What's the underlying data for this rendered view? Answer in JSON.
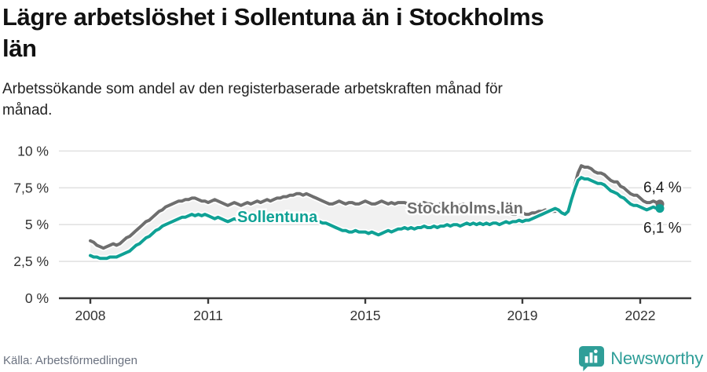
{
  "header": {
    "title": "Lägre arbetslöshet i Sollentuna än i Stockholms län",
    "subtitle": "Arbetssökande som andel av den registerbaserade arbetskraften månad för månad."
  },
  "footer": {
    "source": "Källa: Arbetsförmedlingen",
    "brand": "Newsworthy"
  },
  "colors": {
    "title_text": "#111111",
    "subtitle_text": "#222222",
    "axis_text": "#333333",
    "axis_line": "#3b3b3b",
    "gridline": "#e2e2e2",
    "band_fill": "#f1f1f1",
    "end_label_text": "#1a1a1a",
    "source_text": "#6b7280",
    "brand_teal": "#2f9e98",
    "stockholm_gray": "#6e6e6e",
    "sollentuna_teal": "#0fa195"
  },
  "chart_data": {
    "type": "line",
    "title": "Lägre arbetslöshet i Sollentuna än i Stockholms län",
    "xlabel": "",
    "ylabel": "",
    "frequency": "monthly",
    "x_start": "2008-01",
    "x_end": "2022-07",
    "ylim": [
      0,
      10
    ],
    "grid": "horizontal",
    "legend_position": "inline-labels",
    "x_ticks": [
      2008,
      2011,
      2015,
      2019,
      2022
    ],
    "y_ticks": [
      {
        "v": 0,
        "label": "0 %"
      },
      {
        "v": 2.5,
        "label": "2,5 %"
      },
      {
        "v": 5,
        "label": "5 %"
      },
      {
        "v": 7.5,
        "label": "7,5 %"
      },
      {
        "v": 10,
        "label": "10 %"
      }
    ],
    "series": [
      {
        "name": "Stockholms län",
        "color": "#6e6e6e",
        "end_label": "6,4 %",
        "end_value": 6.4,
        "values": [
          3.9,
          3.8,
          3.6,
          3.5,
          3.4,
          3.5,
          3.6,
          3.7,
          3.6,
          3.7,
          3.9,
          4.1,
          4.2,
          4.4,
          4.6,
          4.8,
          5.0,
          5.2,
          5.3,
          5.5,
          5.7,
          5.9,
          6.0,
          6.2,
          6.3,
          6.4,
          6.5,
          6.6,
          6.6,
          6.7,
          6.7,
          6.8,
          6.8,
          6.7,
          6.6,
          6.6,
          6.5,
          6.6,
          6.7,
          6.6,
          6.5,
          6.4,
          6.3,
          6.4,
          6.5,
          6.4,
          6.3,
          6.4,
          6.5,
          6.4,
          6.5,
          6.6,
          6.5,
          6.6,
          6.7,
          6.6,
          6.7,
          6.8,
          6.8,
          6.9,
          6.9,
          7.0,
          7.0,
          7.1,
          7.1,
          7.0,
          7.1,
          7.0,
          6.9,
          6.8,
          6.7,
          6.6,
          6.5,
          6.4,
          6.4,
          6.5,
          6.6,
          6.5,
          6.4,
          6.5,
          6.5,
          6.4,
          6.4,
          6.5,
          6.6,
          6.5,
          6.4,
          6.4,
          6.5,
          6.6,
          6.5,
          6.4,
          6.5,
          6.4,
          6.5,
          6.5,
          6.5,
          6.4,
          6.4,
          6.5,
          6.4,
          6.5,
          6.5,
          6.4,
          6.4,
          6.3,
          6.3,
          6.4,
          6.4,
          6.3,
          6.3,
          6.4,
          6.3,
          6.3,
          6.4,
          6.3,
          6.2,
          6.2,
          6.1,
          6.2,
          6.1,
          6.0,
          6.0,
          5.9,
          5.9,
          5.8,
          5.9,
          5.8,
          5.8,
          5.7,
          5.7,
          5.8,
          5.8,
          5.7,
          5.7,
          5.8,
          5.8,
          5.9,
          5.9,
          6.0,
          5.9,
          5.9,
          5.9,
          6.0,
          5.9,
          5.8,
          6.0,
          6.9,
          7.7,
          8.5,
          9.0,
          8.9,
          8.9,
          8.8,
          8.6,
          8.5,
          8.5,
          8.4,
          8.2,
          8.0,
          7.9,
          7.9,
          7.6,
          7.5,
          7.3,
          7.1,
          7.0,
          7.0,
          6.8,
          6.6,
          6.5,
          6.5,
          6.6,
          6.5,
          6.4
        ]
      },
      {
        "name": "Sollentuna",
        "color": "#0fa195",
        "end_label": "6,1 %",
        "end_value": 6.1,
        "values": [
          2.9,
          2.8,
          2.8,
          2.7,
          2.7,
          2.7,
          2.8,
          2.8,
          2.8,
          2.9,
          3.0,
          3.1,
          3.2,
          3.4,
          3.6,
          3.7,
          3.9,
          4.1,
          4.2,
          4.4,
          4.6,
          4.7,
          4.9,
          5.0,
          5.1,
          5.2,
          5.3,
          5.4,
          5.5,
          5.5,
          5.6,
          5.7,
          5.6,
          5.7,
          5.6,
          5.7,
          5.6,
          5.5,
          5.4,
          5.5,
          5.4,
          5.3,
          5.2,
          5.3,
          5.4,
          5.3,
          5.4,
          5.3,
          5.3,
          5.4,
          5.3,
          5.4,
          5.4,
          5.3,
          5.4,
          5.4,
          5.5,
          5.4,
          5.5,
          5.5,
          5.5,
          5.6,
          5.5,
          5.6,
          5.5,
          5.5,
          5.4,
          5.4,
          5.3,
          5.3,
          5.2,
          5.1,
          5.1,
          5.0,
          4.9,
          4.8,
          4.7,
          4.6,
          4.6,
          4.5,
          4.5,
          4.6,
          4.5,
          4.5,
          4.5,
          4.4,
          4.5,
          4.4,
          4.3,
          4.4,
          4.5,
          4.6,
          4.5,
          4.6,
          4.7,
          4.7,
          4.8,
          4.7,
          4.8,
          4.7,
          4.8,
          4.8,
          4.9,
          4.8,
          4.8,
          4.9,
          4.8,
          4.9,
          4.9,
          5.0,
          4.9,
          5.0,
          5.0,
          4.9,
          5.0,
          5.1,
          5.0,
          5.1,
          5.0,
          5.1,
          5.0,
          5.1,
          5.0,
          5.1,
          5.1,
          5.0,
          5.1,
          5.2,
          5.1,
          5.2,
          5.2,
          5.3,
          5.2,
          5.3,
          5.3,
          5.4,
          5.5,
          5.6,
          5.7,
          5.8,
          5.9,
          6.0,
          6.1,
          6.0,
          5.8,
          5.7,
          5.9,
          6.7,
          7.4,
          8.0,
          8.2,
          8.1,
          8.1,
          8.0,
          7.9,
          7.8,
          7.8,
          7.7,
          7.5,
          7.3,
          7.2,
          7.1,
          6.9,
          6.8,
          6.6,
          6.4,
          6.3,
          6.3,
          6.2,
          6.1,
          6.0,
          6.1,
          6.2,
          6.1,
          6.1
        ]
      }
    ]
  }
}
